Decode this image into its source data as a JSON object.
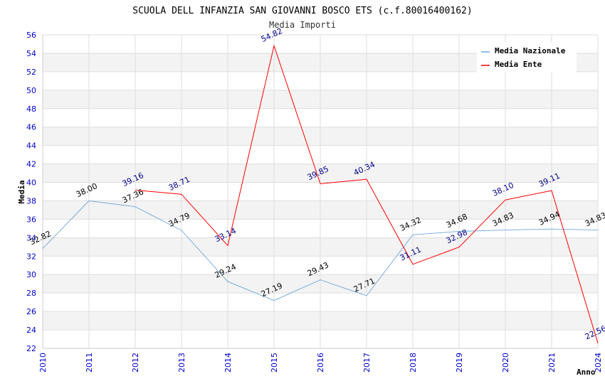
{
  "chart_data": {
    "type": "line",
    "title": "SCUOLA DELL INFANZIA SAN GIOVANNI BOSCO ETS (c.f.80016400162)",
    "subtitle": "Media Importi",
    "xlabel": "Anno",
    "ylabel": "Media",
    "ylim": [
      22,
      56
    ],
    "ytick_step": 2,
    "grid": true,
    "legend_position": "top-right",
    "x": [
      "2010",
      "2011",
      "2012",
      "2013",
      "2014",
      "2015",
      "2016",
      "2017",
      "2018",
      "2019",
      "2020",
      "2021",
      "2024"
    ],
    "series": [
      {
        "name": "Media Nazionale",
        "color": "#6fa8dc",
        "values": [
          32.82,
          38.0,
          37.36,
          34.79,
          29.24,
          27.19,
          29.43,
          27.71,
          34.32,
          34.68,
          34.83,
          34.94,
          34.83
        ],
        "labels": [
          "32.82",
          "38.00",
          "37.36",
          "34.79",
          "29.24",
          "27.19",
          "29.43",
          "27.71",
          "34.32",
          "34.68",
          "34.83",
          "34.94",
          "34.83"
        ]
      },
      {
        "name": "Media Ente",
        "color": "#ff0000",
        "values": [
          null,
          null,
          39.16,
          38.71,
          33.14,
          54.82,
          39.85,
          40.34,
          31.11,
          32.98,
          38.1,
          39.11,
          22.56
        ],
        "labels": [
          "",
          "",
          "39.16",
          "38.71",
          "33.14",
          "54.82",
          "39.85",
          "40.34",
          "31.11",
          "32.98",
          "38.10",
          "39.11",
          "22.56"
        ]
      }
    ]
  }
}
